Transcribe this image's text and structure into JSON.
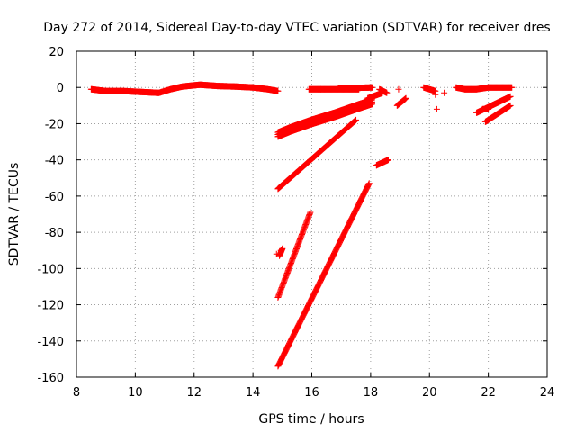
{
  "chart_data": {
    "type": "scatter",
    "title": "Day 272 of 2014, Sidereal Day-to-day VTEC variation (SDTVAR) for receiver dres",
    "xlabel": "GPS time / hours",
    "ylabel": "SDTVAR / TECUs",
    "xlim": [
      8,
      24
    ],
    "ylim": [
      -160,
      20
    ],
    "xticks": [
      "8",
      "10",
      "12",
      "14",
      "16",
      "18",
      "20",
      "22",
      "24"
    ],
    "yticks": [
      "20",
      "0",
      "-20",
      "-40",
      "-60",
      "-80",
      "-100",
      "-120",
      "-140",
      "-160"
    ],
    "grid": true,
    "marker": "plus",
    "color": "#ff0000",
    "series": [
      {
        "name": "arc-main",
        "type": "wave",
        "x0": 8.5,
        "x1": 14.85,
        "keys": [
          [
            8.5,
            -1
          ],
          [
            9.0,
            -2
          ],
          [
            9.6,
            -2
          ],
          [
            10.2,
            -2.5
          ],
          [
            10.8,
            -3
          ],
          [
            11.2,
            -1
          ],
          [
            11.6,
            0.5
          ],
          [
            12.2,
            1.5
          ],
          [
            12.8,
            0.8
          ],
          [
            13.4,
            0.5
          ],
          [
            14.0,
            0
          ],
          [
            14.5,
            -1
          ],
          [
            14.85,
            -2
          ]
        ]
      },
      {
        "name": "arc-2",
        "type": "line",
        "x0": 15.9,
        "x1": 17.6,
        "y0": -1,
        "y1": -1
      },
      {
        "name": "arc-3",
        "type": "line",
        "x0": 16.9,
        "x1": 18.05,
        "y0": -0.5,
        "y1": 0
      },
      {
        "name": "arc-4",
        "type": "line",
        "x0": 18.3,
        "x1": 18.55,
        "y0": -1,
        "y1": -3
      },
      {
        "name": "arc-5",
        "type": "line",
        "x0": 19.8,
        "x1": 20.2,
        "y0": 0,
        "y1": -2
      },
      {
        "name": "arc-6",
        "type": "wave",
        "x0": 20.9,
        "x1": 22.8,
        "keys": [
          [
            20.9,
            0
          ],
          [
            21.2,
            -1
          ],
          [
            21.6,
            -1
          ],
          [
            22.0,
            0
          ],
          [
            22.4,
            0
          ],
          [
            22.8,
            0
          ]
        ]
      },
      {
        "name": "arc-dn-1",
        "type": "curve",
        "x0": 14.85,
        "x1": 18.05,
        "keys": [
          [
            14.85,
            -26
          ],
          [
            15.3,
            -23
          ],
          [
            16.0,
            -19
          ],
          [
            16.8,
            -15
          ],
          [
            17.5,
            -11
          ],
          [
            18.05,
            -8
          ]
        ],
        "thick": true
      },
      {
        "name": "arc-dn-2",
        "type": "line",
        "x0": 17.9,
        "x1": 18.4,
        "y0": -6,
        "y1": -3
      },
      {
        "name": "arc-dn-3",
        "type": "line",
        "x0": 18.9,
        "x1": 19.2,
        "y0": -10,
        "y1": -6
      },
      {
        "name": "arc-dn-4",
        "type": "line",
        "x0": 21.6,
        "x1": 22.75,
        "y0": -14,
        "y1": -5
      },
      {
        "name": "arc-dn-5",
        "type": "line",
        "x0": 21.9,
        "x1": 22.75,
        "y0": -19,
        "y1": -10
      },
      {
        "name": "arc-dn-6",
        "type": "line",
        "x0": 21.8,
        "x1": 22.0,
        "y0": -12,
        "y1": -12
      },
      {
        "name": "steep-1",
        "type": "line",
        "x0": 14.85,
        "x1": 17.5,
        "y0": -56,
        "y1": -18
      },
      {
        "name": "steep-2",
        "type": "line",
        "x0": 14.85,
        "x1": 15.95,
        "y0": -116,
        "y1": -69
      },
      {
        "name": "steep-3",
        "type": "line",
        "x0": 14.85,
        "x1": 17.95,
        "y0": -154,
        "y1": -53
      },
      {
        "name": "short-a",
        "type": "line",
        "x0": 14.9,
        "x1": 15.0,
        "y0": -93,
        "y1": -89
      },
      {
        "name": "short-b",
        "type": "line",
        "x0": 18.2,
        "x1": 18.6,
        "y0": -43,
        "y1": -40
      }
    ],
    "isolated_points": [
      {
        "x": 18.2,
        "y": -43
      },
      {
        "x": 18.55,
        "y": -40
      },
      {
        "x": 18.95,
        "y": -1
      },
      {
        "x": 20.25,
        "y": -12
      },
      {
        "x": 20.5,
        "y": -3
      },
      {
        "x": 20.2,
        "y": -4
      },
      {
        "x": 16.3,
        "y": -1
      },
      {
        "x": 14.8,
        "y": -92
      },
      {
        "x": 14.95,
        "y": -90
      }
    ]
  }
}
